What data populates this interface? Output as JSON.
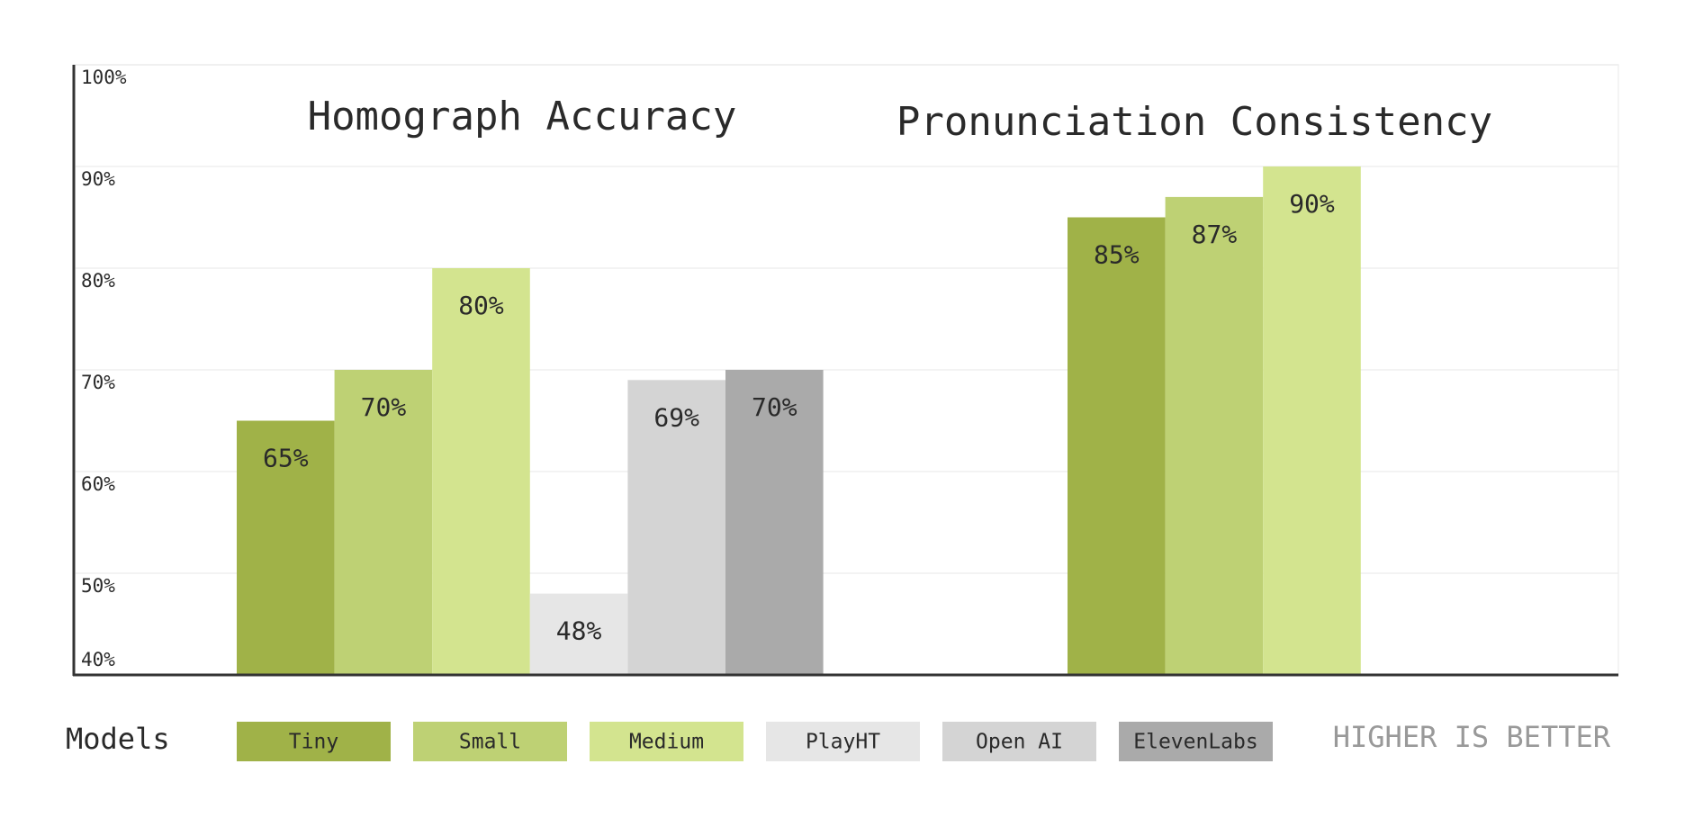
{
  "chart_data": {
    "type": "bar",
    "categories": [
      "Homograph Accuracy",
      "Pronunciation Consistency"
    ],
    "series": [
      {
        "name": "Tiny",
        "color": "#a0b248",
        "values": [
          65,
          85
        ],
        "value_labels": [
          "65%",
          "85%"
        ]
      },
      {
        "name": "Small",
        "color": "#bed174",
        "values": [
          70,
          87
        ],
        "value_labels": [
          "70%",
          "87%"
        ]
      },
      {
        "name": "Medium",
        "color": "#d3e48f",
        "values": [
          80,
          90
        ],
        "value_labels": [
          "80%",
          "90%"
        ]
      },
      {
        "name": "PlayHT",
        "color": "#e6e6e6",
        "values": [
          48,
          null
        ],
        "value_labels": [
          "48%",
          null
        ]
      },
      {
        "name": "Open AI",
        "color": "#d4d4d4",
        "values": [
          69,
          null
        ],
        "value_labels": [
          "69%",
          null
        ]
      },
      {
        "name": "ElevenLabs",
        "color": "#aaaaaa",
        "values": [
          70,
          null
        ],
        "value_labels": [
          "70%",
          null
        ]
      }
    ],
    "ylim": [
      40,
      100
    ],
    "yticks": [
      {
        "value": 40,
        "label": "40%"
      },
      {
        "value": 50,
        "label": "50%"
      },
      {
        "value": 60,
        "label": "60%"
      },
      {
        "value": 70,
        "label": "70%"
      },
      {
        "value": 80,
        "label": "80%"
      },
      {
        "value": 90,
        "label": "90%"
      },
      {
        "value": 100,
        "label": "100%"
      }
    ],
    "grid": true,
    "legend_title": "Models",
    "annotation": "HIGHER IS BETTER"
  }
}
